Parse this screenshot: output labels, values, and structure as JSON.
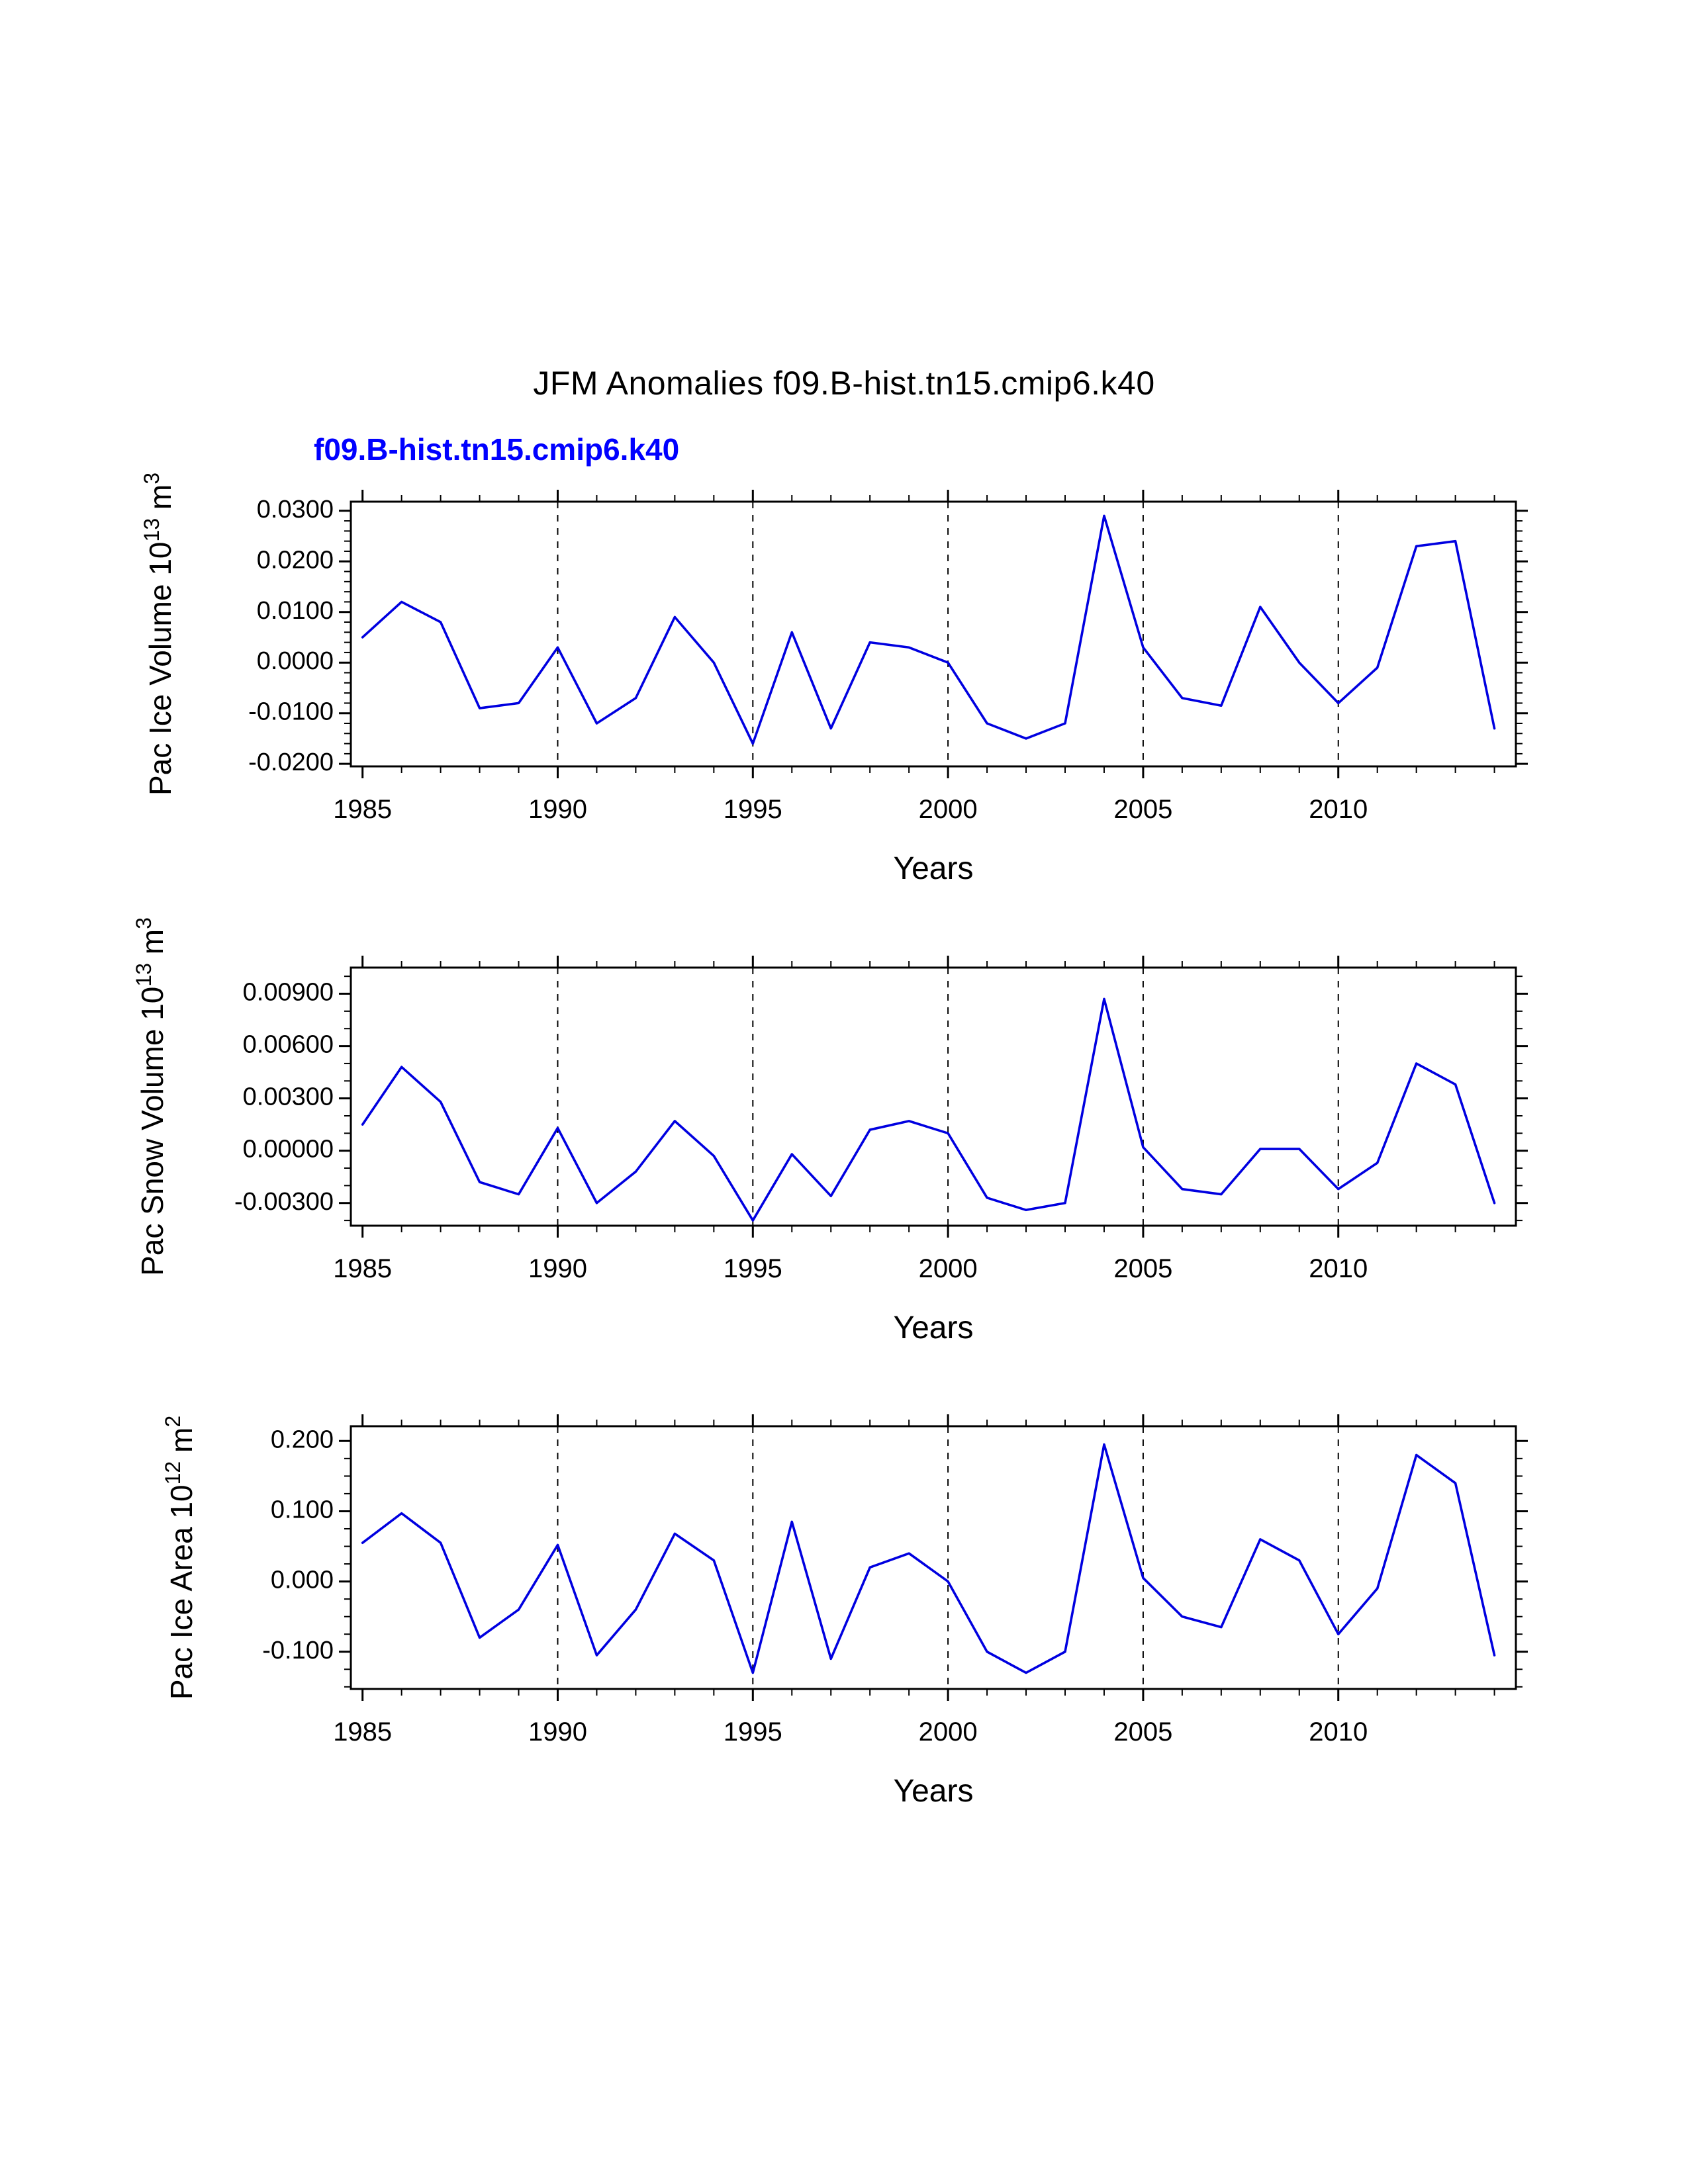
{
  "title": "JFM Anomalies f09.B-hist.tn15.cmip6.k40",
  "legend_label": "f09.B-hist.tn15.cmip6.k40",
  "colors": {
    "line": "#0000e0",
    "legend_text": "#0000ff",
    "axis": "#000000"
  },
  "chart_data": [
    {
      "type": "line",
      "ylabel_segments": [
        {
          "t": "Pac Ice Volume 10"
        },
        {
          "t": "13",
          "sup": true
        },
        {
          "t": " m"
        },
        {
          "t": "3",
          "sup": true
        }
      ],
      "xlabel": "Years",
      "x": [
        1985,
        1986,
        1987,
        1988,
        1989,
        1990,
        1991,
        1992,
        1993,
        1994,
        1995,
        1996,
        1997,
        1998,
        1999,
        2000,
        2001,
        2002,
        2003,
        2004,
        2005,
        2006,
        2007,
        2008,
        2009,
        2010,
        2011,
        2012,
        2013,
        2014
      ],
      "values": [
        0.005,
        0.012,
        0.008,
        -0.009,
        -0.008,
        0.003,
        -0.012,
        -0.007,
        0.009,
        0.0,
        -0.016,
        0.006,
        -0.013,
        0.004,
        0.003,
        0.0,
        -0.012,
        -0.015,
        -0.012,
        0.029,
        0.003,
        -0.007,
        -0.0085,
        0.011,
        0.0,
        -0.008,
        -0.001,
        0.023,
        0.024,
        -0.013
      ],
      "xlim": [
        1984.7,
        2014.55
      ],
      "ylim": [
        -0.0205,
        0.0318
      ],
      "xticks": [
        1985,
        1990,
        1995,
        2000,
        2005,
        2010
      ],
      "xtick_labels": [
        "1985",
        "1990",
        "1995",
        "2000",
        "2005",
        "2010"
      ],
      "grid_x": [
        1990,
        1995,
        2000,
        2005,
        2010
      ],
      "yticks": [
        0.03,
        0.02,
        0.01,
        0.0,
        -0.01,
        -0.02
      ],
      "ytick_labels": [
        "0.0300",
        "0.0200",
        "0.0100",
        "0.0000",
        "-0.0100",
        "-0.0200"
      ],
      "y_minor_step": 0.002,
      "grid": "dashed-vertical",
      "legend_position": "top-left"
    },
    {
      "type": "line",
      "ylabel_segments": [
        {
          "t": "Pac Snow Volume 10"
        },
        {
          "t": "13",
          "sup": true
        },
        {
          "t": " m"
        },
        {
          "t": "3",
          "sup": true
        }
      ],
      "xlabel": "Years",
      "x": [
        1985,
        1986,
        1987,
        1988,
        1989,
        1990,
        1991,
        1992,
        1993,
        1994,
        1995,
        1996,
        1997,
        1998,
        1999,
        2000,
        2001,
        2002,
        2003,
        2004,
        2005,
        2006,
        2007,
        2008,
        2009,
        2010,
        2011,
        2012,
        2013,
        2014
      ],
      "values": [
        0.0015,
        0.0048,
        0.0028,
        -0.0018,
        -0.0025,
        0.0013,
        -0.003,
        -0.0012,
        0.0017,
        -0.0003,
        -0.004,
        -0.0002,
        -0.0026,
        0.0012,
        0.0017,
        0.001,
        -0.0027,
        -0.0034,
        -0.003,
        0.0087,
        0.0002,
        -0.0022,
        -0.0025,
        0.0001,
        0.0001,
        -0.0022,
        -0.0007,
        0.005,
        0.0038,
        -0.003
      ],
      "xlim": [
        1984.7,
        2014.55
      ],
      "ylim": [
        -0.0043,
        0.0105
      ],
      "xticks": [
        1985,
        1990,
        1995,
        2000,
        2005,
        2010
      ],
      "xtick_labels": [
        "1985",
        "1990",
        "1995",
        "2000",
        "2005",
        "2010"
      ],
      "grid_x": [
        1990,
        1995,
        2000,
        2005,
        2010
      ],
      "yticks": [
        0.009,
        0.006,
        0.003,
        0.0,
        -0.003
      ],
      "ytick_labels": [
        "0.00900",
        "0.00600",
        "0.00300",
        "0.00000",
        "-0.00300"
      ],
      "y_minor_step": 0.001,
      "grid": "dashed-vertical",
      "legend_position": "none"
    },
    {
      "type": "line",
      "ylabel_segments": [
        {
          "t": "Pac Ice Area 10"
        },
        {
          "t": "12",
          "sup": true
        },
        {
          "t": " m"
        },
        {
          "t": "2",
          "sup": true
        }
      ],
      "xlabel": "Years",
      "x": [
        1985,
        1986,
        1987,
        1988,
        1989,
        1990,
        1991,
        1992,
        1993,
        1994,
        1995,
        1996,
        1997,
        1998,
        1999,
        2000,
        2001,
        2002,
        2003,
        2004,
        2005,
        2006,
        2007,
        2008,
        2009,
        2010,
        2011,
        2012,
        2013,
        2014
      ],
      "values": [
        0.055,
        0.097,
        0.055,
        -0.08,
        -0.04,
        0.052,
        -0.105,
        -0.04,
        0.068,
        0.03,
        -0.13,
        0.085,
        -0.11,
        0.02,
        0.04,
        0.0,
        -0.1,
        -0.13,
        -0.1,
        0.195,
        0.005,
        -0.05,
        -0.065,
        0.06,
        0.03,
        -0.075,
        -0.01,
        0.18,
        0.14,
        -0.105
      ],
      "xlim": [
        1984.7,
        2014.55
      ],
      "ylim": [
        -0.153,
        0.221
      ],
      "xticks": [
        1985,
        1990,
        1995,
        2000,
        2005,
        2010
      ],
      "xtick_labels": [
        "1985",
        "1990",
        "1995",
        "2000",
        "2005",
        "2010"
      ],
      "grid_x": [
        1990,
        1995,
        2000,
        2005,
        2010
      ],
      "yticks": [
        0.2,
        0.1,
        0.0,
        -0.1
      ],
      "ytick_labels": [
        "0.200",
        "0.100",
        "0.000",
        "-0.100"
      ],
      "y_minor_step": 0.025,
      "grid": "dashed-vertical",
      "legend_position": "none"
    }
  ]
}
